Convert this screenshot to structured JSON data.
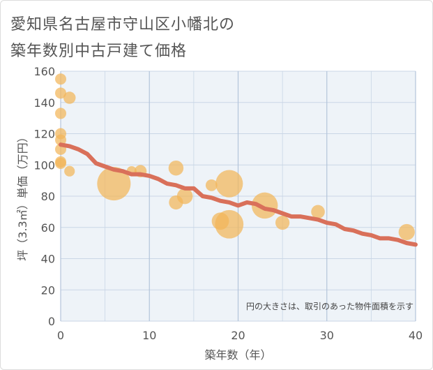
{
  "title": {
    "line1": "愛知県名古屋市守山区小幡北の",
    "line2": "築年数別中古戸建て価格"
  },
  "colors": {
    "bubble": "#f2b659",
    "trend": "#d9705a",
    "plot_bg": "#eef3f8",
    "grid": "#c9d6e6",
    "text": "#555555"
  },
  "chart_data": {
    "type": "scatter",
    "xlabel": "築年数（年）",
    "ylabel": "坪（3.3㎡）単価（万円）",
    "xlim": [
      0,
      40
    ],
    "ylim": [
      0,
      160
    ],
    "xticks": [
      0,
      10,
      20,
      30,
      40
    ],
    "yticks": [
      0,
      20,
      40,
      60,
      80,
      100,
      120,
      140,
      160
    ],
    "annotation": "円の大きさは、取引のあった物件面積を示す",
    "points": [
      {
        "x": 0,
        "y": 155,
        "size": 1
      },
      {
        "x": 0,
        "y": 146,
        "size": 1
      },
      {
        "x": 0,
        "y": 133,
        "size": 1
      },
      {
        "x": 0,
        "y": 120,
        "size": 1
      },
      {
        "x": 0,
        "y": 116,
        "size": 1
      },
      {
        "x": 0,
        "y": 110,
        "size": 1
      },
      {
        "x": 0,
        "y": 102,
        "size": 1
      },
      {
        "x": 0,
        "y": 101,
        "size": 1
      },
      {
        "x": 1,
        "y": 143,
        "size": 1.2
      },
      {
        "x": 1,
        "y": 96,
        "size": 0.9
      },
      {
        "x": 6,
        "y": 88,
        "size": 9
      },
      {
        "x": 8,
        "y": 96,
        "size": 0.8
      },
      {
        "x": 9,
        "y": 96,
        "size": 1.2
      },
      {
        "x": 13,
        "y": 98,
        "size": 1.8
      },
      {
        "x": 13,
        "y": 76,
        "size": 1.6
      },
      {
        "x": 14,
        "y": 80,
        "size": 2
      },
      {
        "x": 17,
        "y": 87,
        "size": 1.1
      },
      {
        "x": 18,
        "y": 64,
        "size": 2.4
      },
      {
        "x": 19,
        "y": 88,
        "size": 6
      },
      {
        "x": 19,
        "y": 62,
        "size": 6.5
      },
      {
        "x": 23,
        "y": 74,
        "size": 5.5
      },
      {
        "x": 25,
        "y": 63,
        "size": 1.6
      },
      {
        "x": 29,
        "y": 70,
        "size": 1.5
      },
      {
        "x": 39,
        "y": 57,
        "size": 2.1
      }
    ],
    "trend": {
      "x": [
        0,
        1,
        2,
        3,
        4,
        5,
        6,
        7,
        8,
        9,
        10,
        11,
        12,
        13,
        14,
        15,
        16,
        17,
        18,
        19,
        20,
        21,
        22,
        23,
        24,
        25,
        26,
        27,
        28,
        29,
        30,
        31,
        32,
        33,
        34,
        35,
        36,
        37,
        38,
        39,
        40
      ],
      "y": [
        113,
        112,
        110,
        107,
        101,
        99,
        97,
        96,
        94,
        94,
        93,
        91,
        88,
        87,
        85,
        85,
        80,
        79,
        77,
        76,
        74,
        76,
        75,
        72,
        71,
        69,
        67,
        67,
        66,
        65,
        63,
        62,
        59,
        58,
        56,
        55,
        53,
        53,
        52,
        50,
        49
      ]
    }
  }
}
